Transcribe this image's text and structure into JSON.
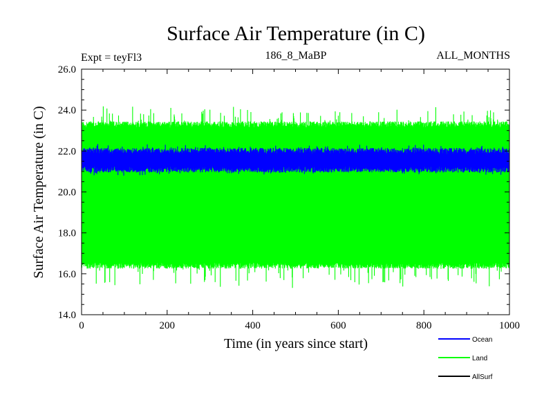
{
  "chart_data": {
    "type": "line",
    "title": "Surface Air Temperature (in C)",
    "subtitle_left": "Expt = teyFl3",
    "subtitle_center": "186_8_MaBP",
    "subtitle_right": "ALL_MONTHS",
    "xlabel": "Time (in years since start)",
    "ylabel": "Surface Air Temperature (in C)",
    "xlim": [
      0,
      1000
    ],
    "ylim": [
      14.0,
      26.0
    ],
    "xticks": [
      0,
      200,
      400,
      600,
      800,
      1000
    ],
    "yticks": [
      14.0,
      16.0,
      18.0,
      20.0,
      22.0,
      24.0,
      26.0
    ],
    "xtick_labels": [
      "0",
      "200",
      "400",
      "600",
      "800",
      "1000"
    ],
    "ytick_labels": [
      "14.0",
      "16.0",
      "18.0",
      "20.0",
      "22.0",
      "24.0",
      "26.0"
    ],
    "grid": false,
    "legend_position": "bottom-right",
    "series": [
      {
        "name": "Land",
        "color": "#00ff00",
        "band_low": 16.4,
        "band_high": 23.3,
        "min": 15.4,
        "max": 24.1
      },
      {
        "name": "Ocean",
        "color": "#0000ff",
        "band_low": 21.1,
        "band_high": 22.0,
        "min": 20.9,
        "max": 22.2
      },
      {
        "name": "AllSurf",
        "color": "#000000"
      }
    ],
    "legend": [
      {
        "name": "Ocean",
        "color": "#0000ff"
      },
      {
        "name": "Land",
        "color": "#00ff00"
      },
      {
        "name": "AllSurf",
        "color": "#000000"
      }
    ]
  }
}
